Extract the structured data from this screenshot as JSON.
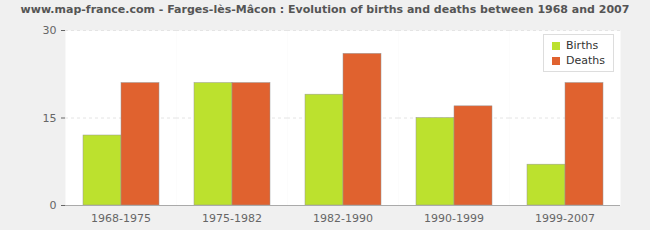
{
  "chart_data": {
    "type": "bar",
    "title": "www.map-france.com - Farges-lès-Mâcon : Evolution of births and deaths between 1968 and 2007",
    "categories": [
      "1968-1975",
      "1975-1982",
      "1982-1990",
      "1990-1999",
      "1999-2007"
    ],
    "series": [
      {
        "name": "Births",
        "color": "#bce12e",
        "values": [
          12,
          21,
          19,
          15,
          7
        ]
      },
      {
        "name": "Deaths",
        "color": "#e0622f",
        "values": [
          21,
          21,
          26,
          17,
          21
        ]
      }
    ],
    "ylim": [
      0,
      30
    ],
    "yticks": [
      0,
      15,
      30
    ],
    "grid": true,
    "legend": "upper right"
  }
}
